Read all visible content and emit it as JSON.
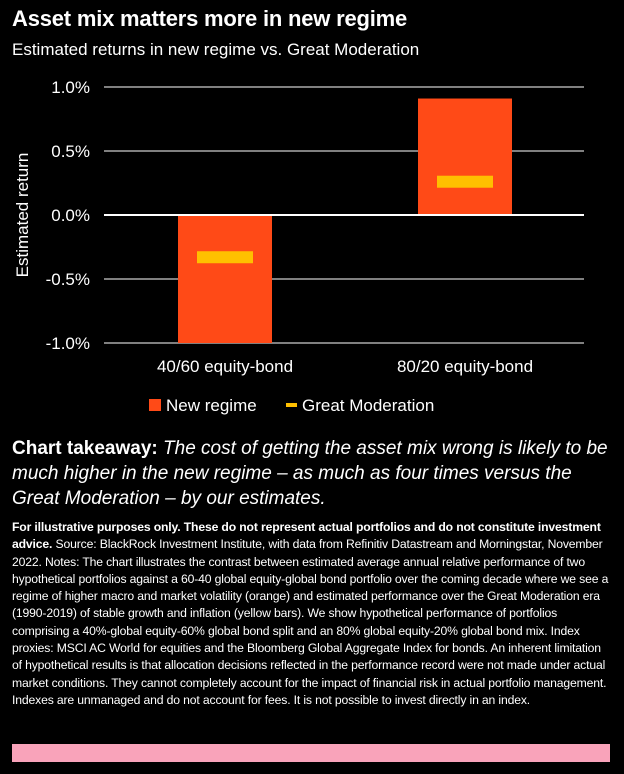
{
  "header": {
    "title": "Asset mix matters more in new regime",
    "subtitle": "Estimated returns in new regime vs. Great Moderation"
  },
  "colors": {
    "background": "#000000",
    "new_regime": "#ff4a17",
    "great_moderation": "#ffc000",
    "pink_bar": "#f9a3ba"
  },
  "chart_data": {
    "type": "bar",
    "title": "Asset mix matters more in new regime",
    "subtitle": "Estimated returns in new regime vs. Great Moderation",
    "xlabel": "",
    "ylabel": "Estimated return",
    "ylim": [
      -1.0,
      1.0
    ],
    "yticks": [
      1.0,
      0.5,
      0.0,
      -0.5,
      -1.0
    ],
    "ytick_labels": [
      "1.0%",
      "0.5%",
      "0.0%",
      "-0.5%",
      "-1.0%"
    ],
    "categories": [
      "40/60 equity-bond",
      "80/20 equity-bond"
    ],
    "series": [
      {
        "name": "New regime",
        "kind": "bar",
        "values": [
          -1.0,
          0.91
        ]
      },
      {
        "name": "Great Moderation",
        "kind": "marker",
        "values": [
          -0.33,
          0.26
        ]
      }
    ],
    "legend": [
      "New regime",
      "Great Moderation"
    ],
    "legend_position": "bottom"
  },
  "takeaway": {
    "lead": "Chart takeaway:",
    "text": "The cost of getting the asset mix wrong is likely to be much higher in the new regime – as much as four times versus the Great Moderation – by our estimates."
  },
  "notes": {
    "bold": "For illustrative purposes only. These do not represent actual portfolios and do not constitute investment advice.",
    "text": "Source: BlackRock Investment Institute, with data from Refinitiv Datastream and Morningstar, November 2022. Notes: The chart illustrates the contrast between estimated average annual relative performance of two hypothetical portfolios against a 60-40 global equity-global bond portfolio over the coming decade where we see a regime of higher macro and market volatility (orange) and estimated performance over the Great Moderation era (1990-2019) of stable growth and inflation (yellow bars). We show hypothetical performance of portfolios comprising a 40%-global equity-60% global bond split and an 80% global equity-20% global bond mix. Index proxies: MSCI AC World for equities and the Bloomberg Global Aggregate Index for bonds. An inherent limitation of hypothetical results is that allocation decisions reflected in the performance record were not made under actual market conditions. They cannot completely account for the impact of financial risk in actual portfolio management. Indexes are unmanaged and do not account for fees. It is not possible to invest directly in an index."
  }
}
